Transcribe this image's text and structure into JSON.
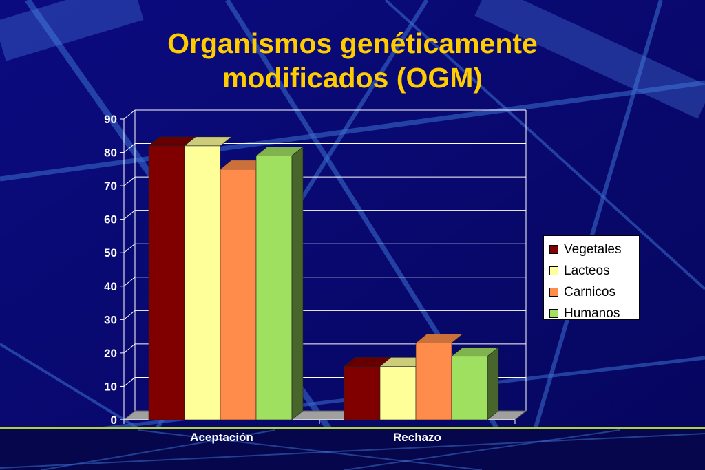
{
  "title_line1": "Organismos genéticamente",
  "title_line2": "modificados (OGM)",
  "chart_data": {
    "type": "bar",
    "title": "Organismos genéticamente modificados (OGM)",
    "categories": [
      "Aceptación",
      "Rechazo"
    ],
    "series": [
      {
        "name": "Vegetales",
        "values": [
          82,
          16
        ],
        "color": "#800000"
      },
      {
        "name": "Lacteos",
        "values": [
          82,
          16
        ],
        "color": "#ffff99"
      },
      {
        "name": "Carnicos",
        "values": [
          75,
          23
        ],
        "color": "#ff8c4a"
      },
      {
        "name": "Humanos",
        "values": [
          79,
          19
        ],
        "color": "#a0e060"
      }
    ],
    "yticks": [
      0,
      10,
      20,
      30,
      40,
      50,
      60,
      70,
      80,
      90
    ],
    "ylim": [
      0,
      90
    ],
    "grid": true,
    "legend_position": "right",
    "three_d": true
  }
}
